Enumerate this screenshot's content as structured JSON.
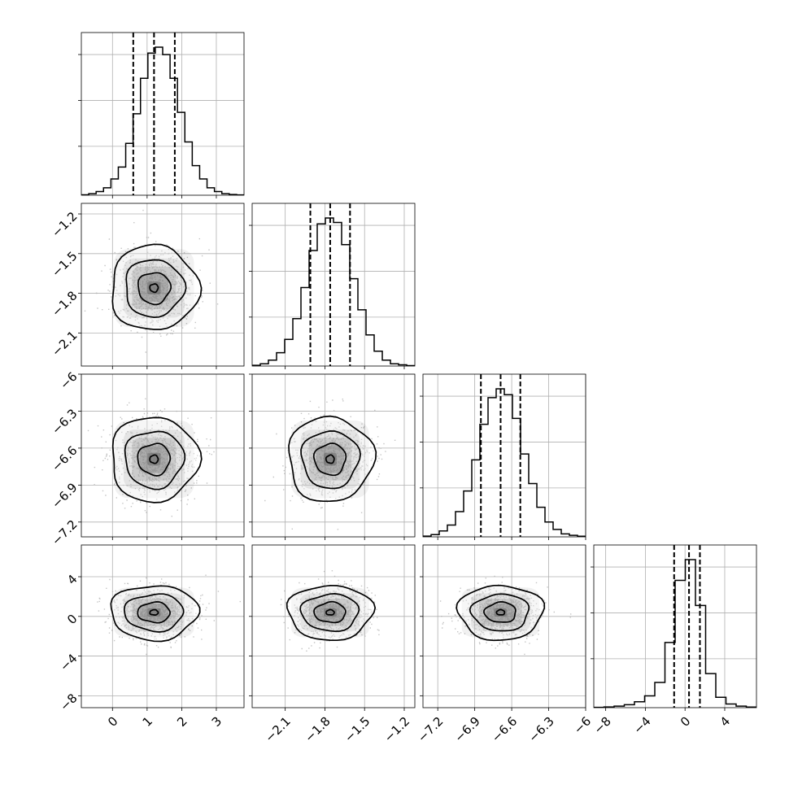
{
  "chart_data": {
    "type": "corner",
    "parameters": [
      {
        "ticks": [
          0,
          1,
          2,
          3
        ],
        "range": [
          -0.9,
          3.8
        ],
        "mean": 1.2,
        "sd": 0.55,
        "quantiles": [
          0.6,
          1.2,
          1.8
        ],
        "hist": [
          0.3,
          1.0,
          2.5,
          5.0,
          11.0,
          19.0,
          35.0,
          55.0,
          79.0,
          96.0,
          100.0,
          95.0,
          79.0,
          56.0,
          36.0,
          20.0,
          11.0,
          5.0,
          2.5,
          1.0,
          0.5,
          0.2
        ]
      },
      {
        "ticks": [
          -2.1,
          -1.8,
          -1.5,
          -1.2
        ],
        "range": [
          -2.35,
          -1.12
        ],
        "mean": -1.76,
        "sd": 0.14,
        "quantiles": [
          -1.91,
          -1.76,
          -1.61
        ],
        "hist": [
          0.5,
          1.5,
          4.0,
          9.0,
          18.0,
          32.0,
          53.0,
          78.0,
          96.0,
          100.0,
          97.0,
          82.0,
          59.0,
          38.0,
          21.0,
          10.0,
          4.0,
          1.5,
          0.8,
          0.3
        ]
      },
      {
        "ticks": [
          -7.2,
          -6.9,
          -6.6,
          -6.3,
          -6.0
        ],
        "range": [
          -7.32,
          -6.0
        ],
        "mean": -6.69,
        "sd": 0.15,
        "quantiles": [
          -6.85,
          -6.69,
          -6.53
        ],
        "hist": [
          0.5,
          1.5,
          4.0,
          8.0,
          17.0,
          31.0,
          52.0,
          76.0,
          94.0,
          100.0,
          96.0,
          80.0,
          56.0,
          36.0,
          20.0,
          10.0,
          5.0,
          2.0,
          1.0,
          0.4
        ]
      },
      {
        "ticks": [
          -8,
          -4,
          0,
          4
        ],
        "range": [
          -9.2,
          7.2
        ],
        "mean": 0.4,
        "sd": 1.2,
        "quantiles": [
          -1.1,
          0.4,
          1.5
        ],
        "hist": [
          0.2,
          0.5,
          1.0,
          2.0,
          4.0,
          8.0,
          17.0,
          44.0,
          86.0,
          100.0,
          69.0,
          23.0,
          7.0,
          2.5,
          1.0,
          0.4
        ]
      }
    ],
    "quantile_levels": [
      0.16,
      0.5,
      0.84
    ],
    "grid": true,
    "colors": {
      "line": "#000000",
      "scatter": "#b0b0b0",
      "grid": "#b0b0b0",
      "density": "#000000"
    }
  }
}
